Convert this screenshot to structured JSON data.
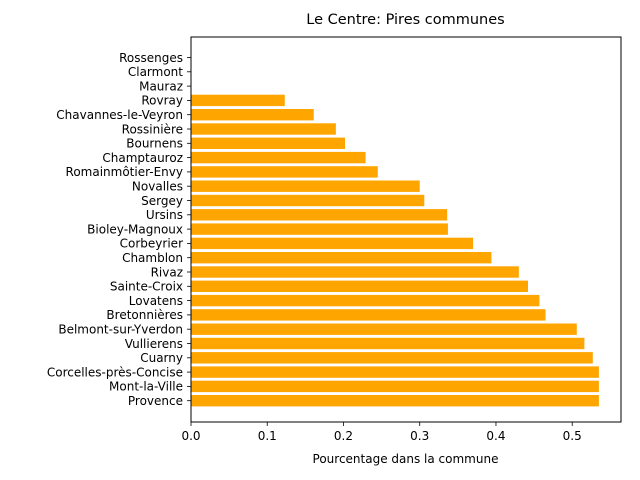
{
  "chart_data": {
    "type": "bar",
    "orientation": "horizontal",
    "title": "Le Centre: Pires communes",
    "xlabel": "Pourcentage dans la commune",
    "ylabel": "",
    "xlim": [
      0,
      0.564
    ],
    "xticks": [
      0.0,
      0.1,
      0.2,
      0.3,
      0.4,
      0.5
    ],
    "xtick_labels": [
      "0.0",
      "0.1",
      "0.2",
      "0.3",
      "0.4",
      "0.5"
    ],
    "bar_color": "#ffa500",
    "categories": [
      "Rossenges",
      "Clarmont",
      "Mauraz",
      "Rovray",
      "Chavannes-le-Veyron",
      "Rossinière",
      "Bournens",
      "Champtauroz",
      "Romainmôtier-Envy",
      "Novalles",
      "Sergey",
      "Ursins",
      "Bioley-Magnoux",
      "Corbeyrier",
      "Chamblon",
      "Rivaz",
      "Sainte-Croix",
      "Lovatens",
      "Bretonnières",
      "Belmont-sur-Yverdon",
      "Vullierens",
      "Cuarny",
      "Corcelles-près-Concise",
      "Mont-la-Ville",
      "Provence"
    ],
    "values": [
      0.0,
      0.0,
      0.0,
      0.123,
      0.161,
      0.19,
      0.202,
      0.229,
      0.245,
      0.3,
      0.306,
      0.336,
      0.337,
      0.37,
      0.394,
      0.43,
      0.442,
      0.457,
      0.465,
      0.506,
      0.516,
      0.527,
      0.535,
      0.535,
      0.535
    ]
  }
}
